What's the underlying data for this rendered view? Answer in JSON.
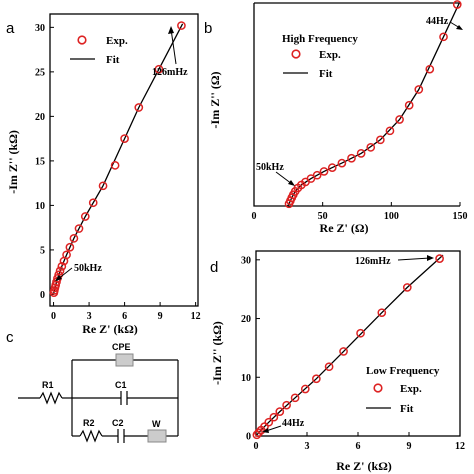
{
  "panels": {
    "a": "a",
    "b": "b",
    "c": "c",
    "d": "d"
  },
  "colors": {
    "exp": "#dd2222",
    "fit": "#000000",
    "arrow": "#000000",
    "element_fill": "#cccccc"
  },
  "chart_data": [
    {
      "id": "a",
      "type": "scatter",
      "xlabel": "Re Z' (kΩ)",
      "ylabel": "-Im Z'' (kΩ)",
      "xlim": [
        -0.3,
        12.2
      ],
      "ylim": [
        -1.3,
        31.5
      ],
      "xticks": [
        0,
        3,
        6,
        9,
        12
      ],
      "yticks": [
        0,
        5,
        10,
        15,
        20,
        25,
        30
      ],
      "legend": [
        "Exp.",
        "Fit"
      ],
      "legend_position": "top-left",
      "series": [
        {
          "name": "Exp.",
          "kind": "markers",
          "x": [
            0.03,
            0.07,
            0.12,
            0.18,
            0.25,
            0.33,
            0.43,
            0.55,
            0.7,
            0.88,
            1.1,
            1.38,
            1.72,
            2.15,
            2.68,
            3.35,
            4.18,
            5.2,
            6.0,
            7.2,
            8.9,
            10.8
          ],
          "y": [
            0.2,
            0.45,
            0.75,
            1.05,
            1.4,
            1.8,
            2.2,
            2.65,
            3.15,
            3.75,
            4.45,
            5.3,
            6.3,
            7.4,
            8.75,
            10.3,
            12.2,
            14.5,
            17.5,
            21.0,
            25.3,
            30.2
          ]
        },
        {
          "name": "Fit",
          "kind": "line",
          "x": [
            0.0,
            0.03,
            0.12,
            0.33,
            0.7,
            1.1,
            1.72,
            2.68,
            4.18,
            6.0,
            7.2,
            8.9,
            10.9
          ],
          "y": [
            0.0,
            0.2,
            0.75,
            1.8,
            3.15,
            4.45,
            6.3,
            8.75,
            12.2,
            17.5,
            21.0,
            25.3,
            30.4
          ]
        }
      ],
      "annotations": [
        {
          "text": "126mHz",
          "x": 10.8,
          "y": 30.2
        },
        {
          "text": "50kHz",
          "x": 0.05,
          "y": 0.2
        }
      ]
    },
    {
      "id": "b",
      "type": "scatter",
      "xlabel": "Re Z' (Ω)",
      "ylabel": "-Im Z'' (Ω)",
      "xlim": [
        0,
        150
      ],
      "ylim": [
        0,
        270
      ],
      "xticks": [
        0,
        50,
        100,
        150
      ],
      "legend": [
        "Exp.",
        "Fit"
      ],
      "legend_title": "High Frequency",
      "legend_position": "top-left",
      "series": [
        {
          "name": "Exp.",
          "kind": "markers",
          "x": [
            25.5,
            26.5,
            27.5,
            28.6,
            30,
            32,
            34.5,
            37.5,
            41.5,
            46,
            51,
            57,
            64,
            71,
            78,
            85,
            92,
            99,
            106,
            113,
            120,
            128,
            138,
            148
          ],
          "y": [
            3,
            7,
            11,
            15,
            19.5,
            24,
            28,
            32,
            36.5,
            41,
            46,
            51,
            57,
            63.5,
            70,
            78,
            88,
            100,
            115,
            134,
            155,
            182,
            225,
            268
          ]
        },
        {
          "name": "Fit",
          "kind": "line",
          "x": [
            24.5,
            25.5,
            27.5,
            30,
            34.5,
            41.5,
            51,
            64,
            78,
            92,
            106,
            120,
            138,
            150
          ],
          "y": [
            0,
            3,
            11,
            19.5,
            28,
            36.5,
            46,
            57,
            70,
            88,
            115,
            155,
            225,
            272
          ]
        }
      ],
      "annotations": [
        {
          "text": "44Hz",
          "x": 148,
          "y": 268
        },
        {
          "text": "50kHz",
          "x": 25.5,
          "y": 3
        }
      ]
    },
    {
      "id": "d",
      "type": "scatter",
      "xlabel": "Re Z' (kΩ)",
      "ylabel": "-Im Z'' (kΩ)",
      "xlim": [
        0,
        12
      ],
      "ylim": [
        0,
        31.5
      ],
      "xticks": [
        0,
        3,
        6,
        9,
        12
      ],
      "yticks": [
        0,
        10,
        20,
        30
      ],
      "legend": [
        "Exp.",
        "Fit"
      ],
      "legend_title": "Low Frequency",
      "legend_position": "bottom-right",
      "series": [
        {
          "name": "Exp.",
          "kind": "markers",
          "x": [
            0.05,
            0.15,
            0.3,
            0.5,
            0.75,
            1.05,
            1.4,
            1.8,
            2.3,
            2.9,
            3.55,
            4.3,
            5.15,
            6.15,
            7.4,
            8.9,
            10.8
          ],
          "y": [
            0.2,
            0.55,
            1.0,
            1.6,
            2.35,
            3.2,
            4.15,
            5.25,
            6.5,
            8.0,
            9.75,
            11.8,
            14.4,
            17.5,
            21.0,
            25.3,
            30.2
          ]
        },
        {
          "name": "Fit",
          "kind": "line",
          "x": [
            0.0,
            0.05,
            0.3,
            0.75,
            1.4,
            2.3,
            3.55,
            5.15,
            7.4,
            8.9,
            11.0
          ],
          "y": [
            0.0,
            0.2,
            1.0,
            2.35,
            4.15,
            6.5,
            9.75,
            14.4,
            21.0,
            25.3,
            30.8
          ]
        }
      ],
      "annotations": [
        {
          "text": "126mHz",
          "x": 10.8,
          "y": 30.2
        },
        {
          "text": "44Hz",
          "x": 0.05,
          "y": 0.2
        }
      ]
    }
  ],
  "circuit": {
    "labels": {
      "cpe": "CPE",
      "r1": "R1",
      "c1": "C1",
      "r2": "R2",
      "c2": "C2",
      "w": "W"
    }
  }
}
